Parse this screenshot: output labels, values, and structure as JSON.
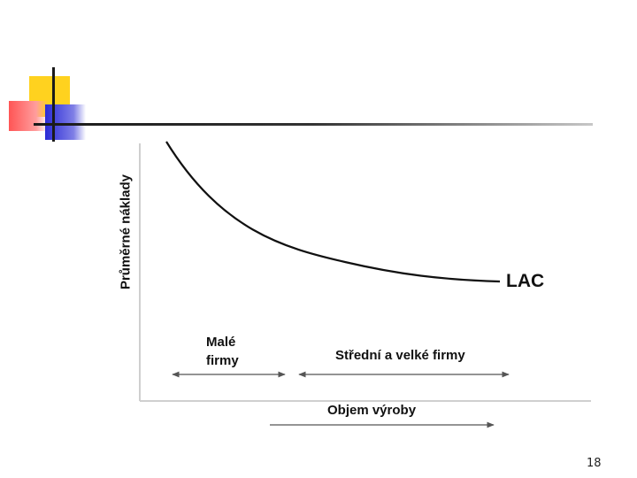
{
  "chart": {
    "y_axis_label": "Průměrné náklady",
    "x_axis_label": "Objem výroby",
    "curve_label": "LAC",
    "segments": [
      {
        "label_line1": "Malé",
        "label_line2": "firmy"
      },
      {
        "label": "Střední a velké firmy"
      }
    ]
  },
  "slide": {
    "page_number": "18"
  },
  "colors": {
    "accent_yellow": "#ffd21f",
    "accent_red": "#ff5555",
    "accent_blue": "#2b2bd6"
  }
}
